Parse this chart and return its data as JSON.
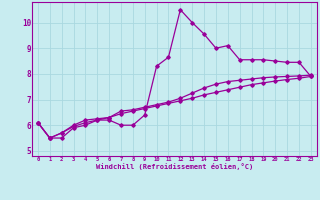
{
  "xlabel": "Windchill (Refroidissement éolien,°C)",
  "bg_color": "#c8ecf0",
  "line_color": "#990099",
  "grid_color": "#aad8e0",
  "xlim": [
    -0.5,
    23.5
  ],
  "ylim": [
    4.8,
    10.8
  ],
  "xticks": [
    0,
    1,
    2,
    3,
    4,
    5,
    6,
    7,
    8,
    9,
    10,
    11,
    12,
    13,
    14,
    15,
    16,
    17,
    18,
    19,
    20,
    21,
    22,
    23
  ],
  "yticks": [
    5,
    6,
    7,
    8,
    9,
    10
  ],
  "series": [
    [
      6.1,
      5.5,
      5.5,
      5.9,
      6.0,
      6.2,
      6.2,
      6.0,
      6.0,
      6.4,
      8.3,
      8.65,
      10.5,
      10.0,
      9.55,
      9.0,
      9.1,
      8.55,
      8.55,
      8.55,
      8.5,
      8.45,
      8.45,
      7.9
    ],
    [
      6.1,
      5.5,
      5.7,
      6.0,
      6.2,
      6.25,
      6.3,
      6.55,
      6.6,
      6.7,
      6.8,
      6.9,
      7.05,
      7.25,
      7.45,
      7.6,
      7.7,
      7.75,
      7.8,
      7.85,
      7.88,
      7.9,
      7.92,
      7.95
    ],
    [
      6.1,
      5.5,
      5.7,
      5.95,
      6.1,
      6.2,
      6.3,
      6.45,
      6.55,
      6.65,
      6.75,
      6.85,
      6.95,
      7.05,
      7.18,
      7.28,
      7.38,
      7.48,
      7.58,
      7.65,
      7.72,
      7.78,
      7.83,
      7.9
    ]
  ]
}
